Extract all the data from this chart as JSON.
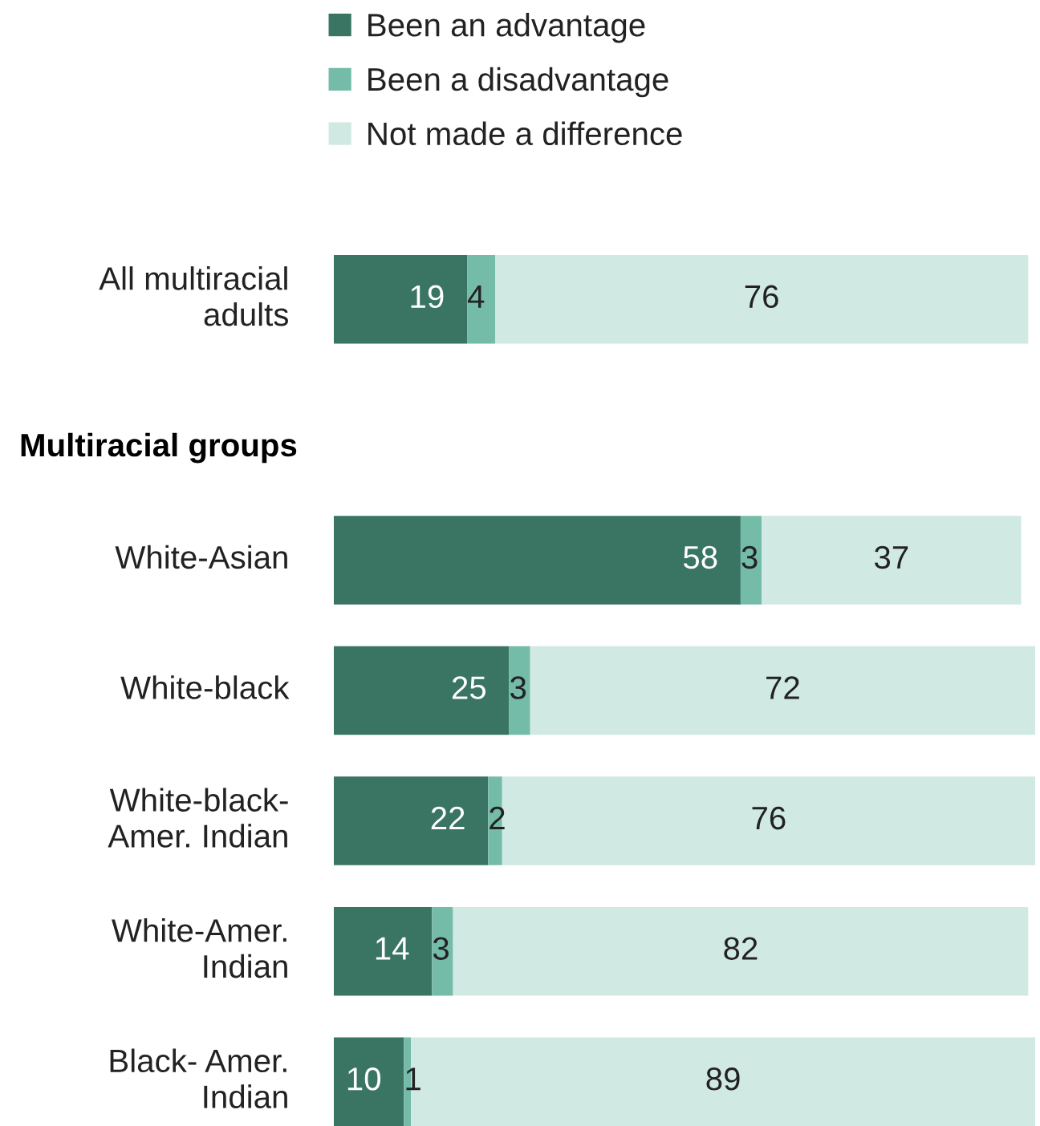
{
  "chart_data": {
    "type": "bar",
    "orientation": "horizontal",
    "stacked": true,
    "categories": [
      "All multiracial\nadults",
      "Multiracial groups",
      "White-Asian",
      "White-black",
      "White-black-\nAmer. Indian",
      "White-Amer.\nIndian",
      "Black- Amer.\nIndian"
    ],
    "series": [
      {
        "name": "Been an advantage",
        "color": "#3a7564",
        "values": [
          19,
          null,
          58,
          25,
          22,
          14,
          10
        ]
      },
      {
        "name": "Been a disadvantage",
        "color": "#74bba8",
        "values": [
          4,
          null,
          3,
          3,
          2,
          3,
          1
        ]
      },
      {
        "name": "Not made a difference",
        "color": "#d1e9e3",
        "values": [
          76,
          null,
          37,
          72,
          76,
          82,
          89
        ]
      }
    ],
    "data_labels": true,
    "legend": "top"
  }
}
